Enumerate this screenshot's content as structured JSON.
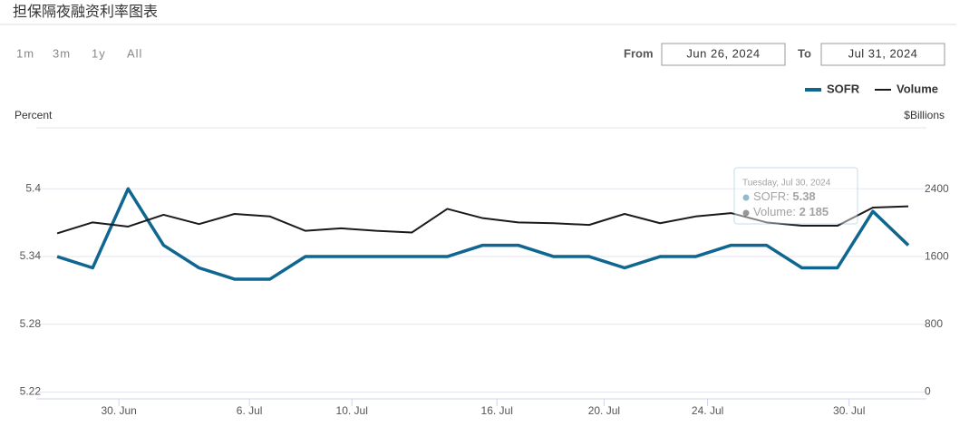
{
  "title": "担保隔夜融资利率图表",
  "range_buttons": [
    "1m",
    "3m",
    "1y",
    "All"
  ],
  "from_label": "From",
  "from_value": "Jun 26, 2024",
  "to_label": "To",
  "to_value": "Jul 31, 2024",
  "chart_data": {
    "type": "line",
    "y_label": "Percent",
    "y2_label": "$Billions",
    "x": [
      0,
      1,
      2,
      3,
      4,
      5,
      6,
      7,
      8,
      9,
      10,
      11,
      12,
      13,
      14,
      15,
      16,
      17,
      18,
      19,
      20,
      21,
      22,
      23,
      24
    ],
    "xlim": [
      -0.59,
      24.51
    ],
    "xticks": [
      {
        "value": 1.74,
        "label": "30. Jun"
      },
      {
        "value": 5.42,
        "label": "6. Jul"
      },
      {
        "value": 8.31,
        "label": "10. Jul"
      },
      {
        "value": 12.4,
        "label": "16. Jul"
      },
      {
        "value": 15.42,
        "label": "20. Jul"
      },
      {
        "value": 18.34,
        "label": "24. Jul"
      },
      {
        "value": 22.33,
        "label": "30. Jul"
      }
    ],
    "ylim": [
      5.214,
      5.454
    ],
    "yticks": [
      5.22,
      5.28,
      5.34,
      5.4
    ],
    "y2lim": [
      -80,
      3130
    ],
    "y2ticks": [
      0,
      800,
      1600,
      2400
    ],
    "grid": true,
    "legend": "top-right",
    "series": [
      {
        "name": "SOFR",
        "color": "#0f6690",
        "width": 3.5,
        "values": [
          5.34,
          5.33,
          5.4,
          5.35,
          5.33,
          5.32,
          5.32,
          5.34,
          5.34,
          5.34,
          5.34,
          5.34,
          5.35,
          5.35,
          5.34,
          5.34,
          5.33,
          5.34,
          5.34,
          5.35,
          5.35,
          5.33,
          5.33,
          5.38,
          5.35
        ]
      },
      {
        "name": "Volume",
        "color": "#1a1a1a",
        "width": 2,
        "axis": "y2",
        "values": [
          1880,
          2010,
          1960,
          2100,
          1990,
          2110,
          2080,
          1910,
          1940,
          1910,
          1890,
          2170,
          2060,
          2010,
          2000,
          1980,
          2110,
          2000,
          2080,
          2120,
          2010,
          1970,
          1970,
          2185,
          2200
        ]
      }
    ],
    "tooltip": {
      "title": "Tuesday, Jul 30, 2024",
      "items": [
        {
          "name": "SOFR",
          "value": 5.38
        },
        {
          "name": "Volume",
          "value": 2185,
          "label": "2 185"
        }
      ]
    }
  }
}
